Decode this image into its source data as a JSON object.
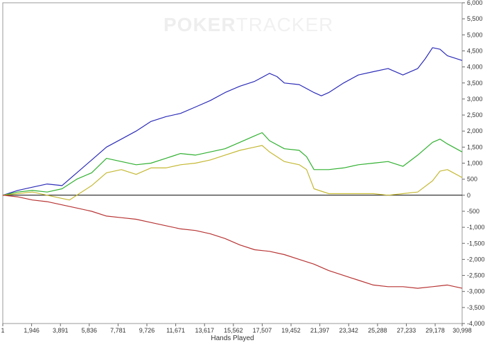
{
  "watermark": {
    "part1": "POKER",
    "part2": "TRACKER"
  },
  "chart_data": {
    "type": "line",
    "title": "",
    "xlabel": "Hands Played",
    "ylabel": "",
    "xlim": [
      1,
      30998
    ],
    "ylim": [
      -4000,
      6000
    ],
    "x_ticks": [
      1,
      1946,
      3891,
      5836,
      7781,
      9726,
      11671,
      13617,
      15562,
      17507,
      19452,
      21397,
      23342,
      25288,
      27233,
      29178,
      30998
    ],
    "x_tick_labels": [
      "1",
      "1,946",
      "3,891",
      "5,836",
      "7,781",
      "9,726",
      "11,671",
      "13,617",
      "15,562",
      "17,507",
      "19,452",
      "21,397",
      "23,342",
      "25,288",
      "27,233",
      "29,178",
      "30,998"
    ],
    "y_ticks": [
      6000,
      5500,
      5000,
      4500,
      4000,
      3500,
      3000,
      2500,
      2000,
      1500,
      1000,
      500,
      0,
      -500,
      -1000,
      -1500,
      -2000,
      -2500,
      -3000,
      -3500,
      -4000
    ],
    "y_tick_labels": [
      "6,000",
      "5,500",
      "5,000",
      "4,500",
      "4,000",
      "3,500",
      "3,000",
      "2,500",
      "2,000",
      "1,500",
      "1,000",
      "500",
      "0",
      "-500",
      "-1,000",
      "-1,500",
      "-2,000",
      "-2,500",
      "-3,000",
      "-3,500",
      "-4,000"
    ],
    "y_axis_side": "right",
    "grid": false,
    "legend": false,
    "series": [
      {
        "color": "#2a2ab8",
        "x": [
          1,
          1000,
          2000,
          3000,
          4000,
          5000,
          6000,
          7000,
          8000,
          9000,
          10000,
          11000,
          12000,
          13000,
          14000,
          15000,
          16000,
          17000,
          18000,
          18500,
          19000,
          20000,
          21000,
          21500,
          22000,
          23000,
          24000,
          25000,
          26000,
          27000,
          28000,
          28500,
          29000,
          29500,
          30000,
          30998
        ],
        "y": [
          0,
          150,
          250,
          350,
          300,
          700,
          1100,
          1500,
          1750,
          2000,
          2300,
          2450,
          2550,
          2750,
          2950,
          3200,
          3400,
          3550,
          3800,
          3700,
          3500,
          3450,
          3200,
          3100,
          3200,
          3500,
          3750,
          3850,
          3950,
          3750,
          3950,
          4250,
          4600,
          4550,
          4350,
          4200
        ]
      },
      {
        "color": "#2fb02f",
        "x": [
          1,
          1000,
          2000,
          3000,
          4000,
          5000,
          6000,
          7000,
          8000,
          9000,
          10000,
          11000,
          12000,
          13000,
          14000,
          15000,
          16000,
          17000,
          17500,
          18000,
          19000,
          20000,
          20500,
          21000,
          22000,
          23000,
          24000,
          25000,
          26000,
          27000,
          28000,
          29000,
          29500,
          30000,
          30998
        ],
        "y": [
          0,
          100,
          150,
          100,
          200,
          500,
          700,
          1150,
          1050,
          950,
          1000,
          1150,
          1300,
          1250,
          1350,
          1450,
          1650,
          1850,
          1950,
          1700,
          1450,
          1400,
          1200,
          800,
          800,
          850,
          950,
          1000,
          1050,
          900,
          1250,
          1650,
          1750,
          1600,
          1350
        ]
      },
      {
        "color": "#c4b832",
        "x": [
          1,
          1000,
          2000,
          3000,
          4000,
          4500,
          5000,
          6000,
          7000,
          8000,
          9000,
          10000,
          11000,
          12000,
          13000,
          14000,
          15000,
          16000,
          17000,
          17500,
          18000,
          19000,
          20000,
          20500,
          21000,
          22000,
          23000,
          24000,
          25000,
          26000,
          27000,
          28000,
          29000,
          29500,
          30000,
          30998
        ],
        "y": [
          0,
          50,
          100,
          0,
          -100,
          -150,
          0,
          300,
          700,
          800,
          650,
          850,
          850,
          950,
          1000,
          1100,
          1250,
          1400,
          1500,
          1550,
          1350,
          1050,
          950,
          800,
          200,
          50,
          50,
          50,
          50,
          0,
          50,
          100,
          450,
          750,
          800,
          550
        ]
      },
      {
        "color": "#b83232",
        "x": [
          1,
          1000,
          2000,
          3000,
          4000,
          5000,
          6000,
          7000,
          8000,
          9000,
          10000,
          11000,
          12000,
          13000,
          14000,
          15000,
          16000,
          17000,
          18000,
          19000,
          20000,
          21000,
          22000,
          23000,
          24000,
          25000,
          26000,
          27000,
          28000,
          29000,
          30000,
          30998
        ],
        "y": [
          0,
          -50,
          -150,
          -200,
          -300,
          -400,
          -500,
          -650,
          -700,
          -750,
          -850,
          -950,
          -1050,
          -1100,
          -1200,
          -1350,
          -1550,
          -1700,
          -1750,
          -1850,
          -2000,
          -2150,
          -2350,
          -2500,
          -2650,
          -2800,
          -2850,
          -2850,
          -2900,
          -2850,
          -2800,
          -2900
        ]
      }
    ]
  }
}
